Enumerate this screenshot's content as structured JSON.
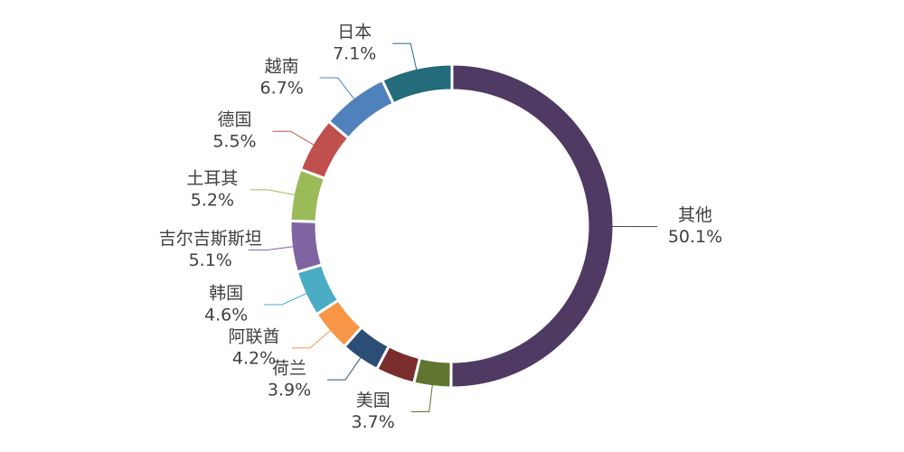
{
  "chart_data": {
    "type": "donut",
    "categories": [
      "其他",
      "美国",
      null,
      "荷兰",
      "阿联酋",
      "韩国",
      "吉尔吉斯斯坦",
      "土耳其",
      "德国",
      "越南",
      "日本"
    ],
    "values": [
      50.1,
      3.7,
      3.9,
      3.9,
      4.2,
      4.6,
      5.1,
      5.2,
      5.5,
      6.7,
      7.1
    ],
    "value_labels": [
      "50.1%",
      "3.7%",
      null,
      "3.9%",
      "4.2%",
      "4.6%",
      "5.1%",
      "5.2%",
      "5.5%",
      "6.7%",
      "7.1%"
    ],
    "colors": [
      "#4e3a63",
      "#5f7530",
      "#7b2c2c",
      "#2c4d75",
      "#f79646",
      "#4bacc6",
      "#8064a2",
      "#9bbb59",
      "#c0504d",
      "#4f81bd",
      "#246b7c"
    ]
  }
}
